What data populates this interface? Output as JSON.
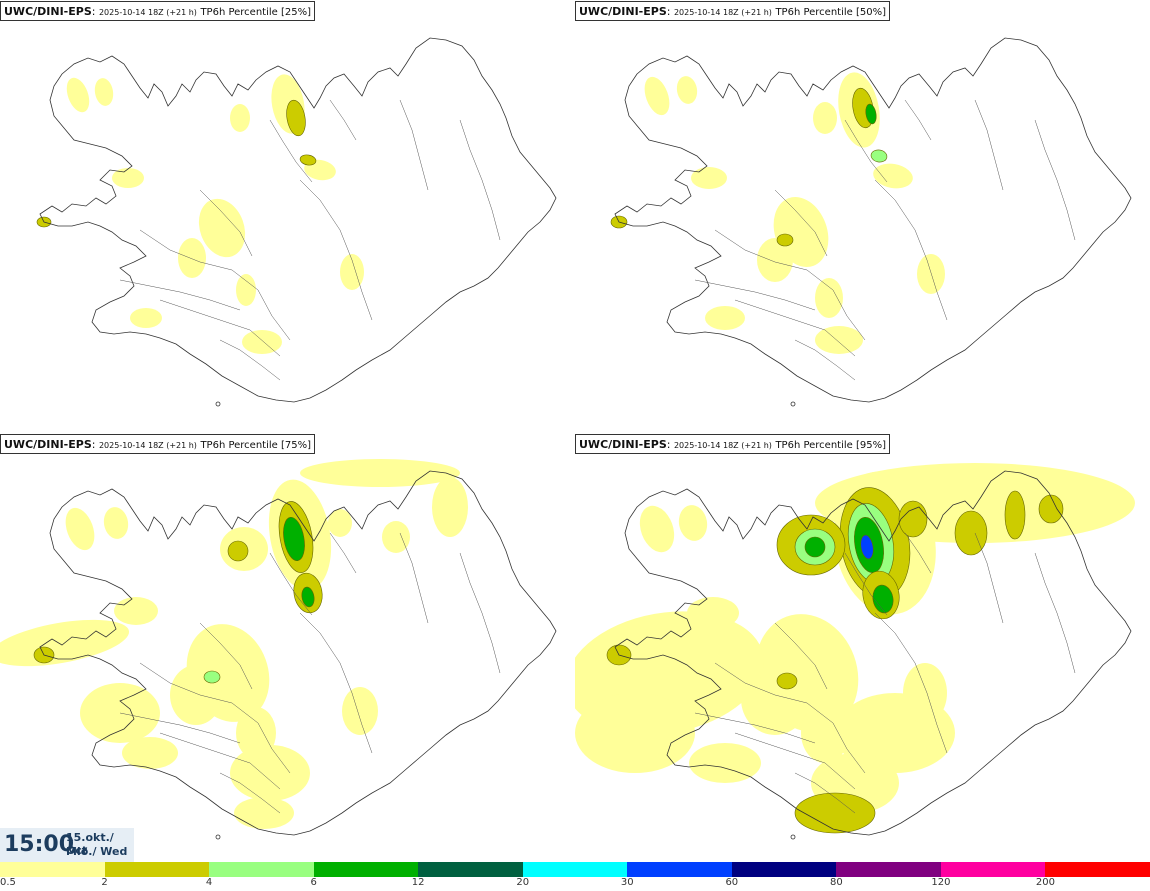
{
  "panels": [
    {
      "model": "UWC/DINI-EPS",
      "run": "2025-10-14 18Z (+21 h)",
      "variable": "TP6h Percentile [25%]"
    },
    {
      "model": "UWC/DINI-EPS",
      "run": "2025-10-14 18Z (+21 h)",
      "variable": "TP6h Percentile [50%]"
    },
    {
      "model": "UWC/DINI-EPS",
      "run": "2025-10-14 18Z (+21 h)",
      "variable": "TP6h Percentile [75%]"
    },
    {
      "model": "UWC/DINI-EPS",
      "run": "2025-10-14 18Z (+21 h)",
      "variable": "TP6h Percentile [95%]"
    }
  ],
  "valid_time": {
    "hour": "15:00",
    "date_line1": "15.okt./ Oct",
    "date_line2": "Mið./ Wed"
  },
  "legend": {
    "ticks": [
      "0.5",
      "2",
      "4",
      "6",
      "12",
      "20",
      "30",
      "60",
      "80",
      "120",
      "200"
    ],
    "colors": [
      "#ffff99",
      "#cccc00",
      "#99ff80",
      "#00b000",
      "#006040",
      "#00ffff",
      "#0040ff",
      "#000080",
      "#800080",
      "#ff00a0",
      "#ff0000"
    ]
  },
  "map": {
    "coast_color": "#333333",
    "fill_colors": [
      "#ffff99",
      "#cccc00",
      "#99ff80",
      "#00b000",
      "#006040",
      "#0040ff"
    ]
  }
}
